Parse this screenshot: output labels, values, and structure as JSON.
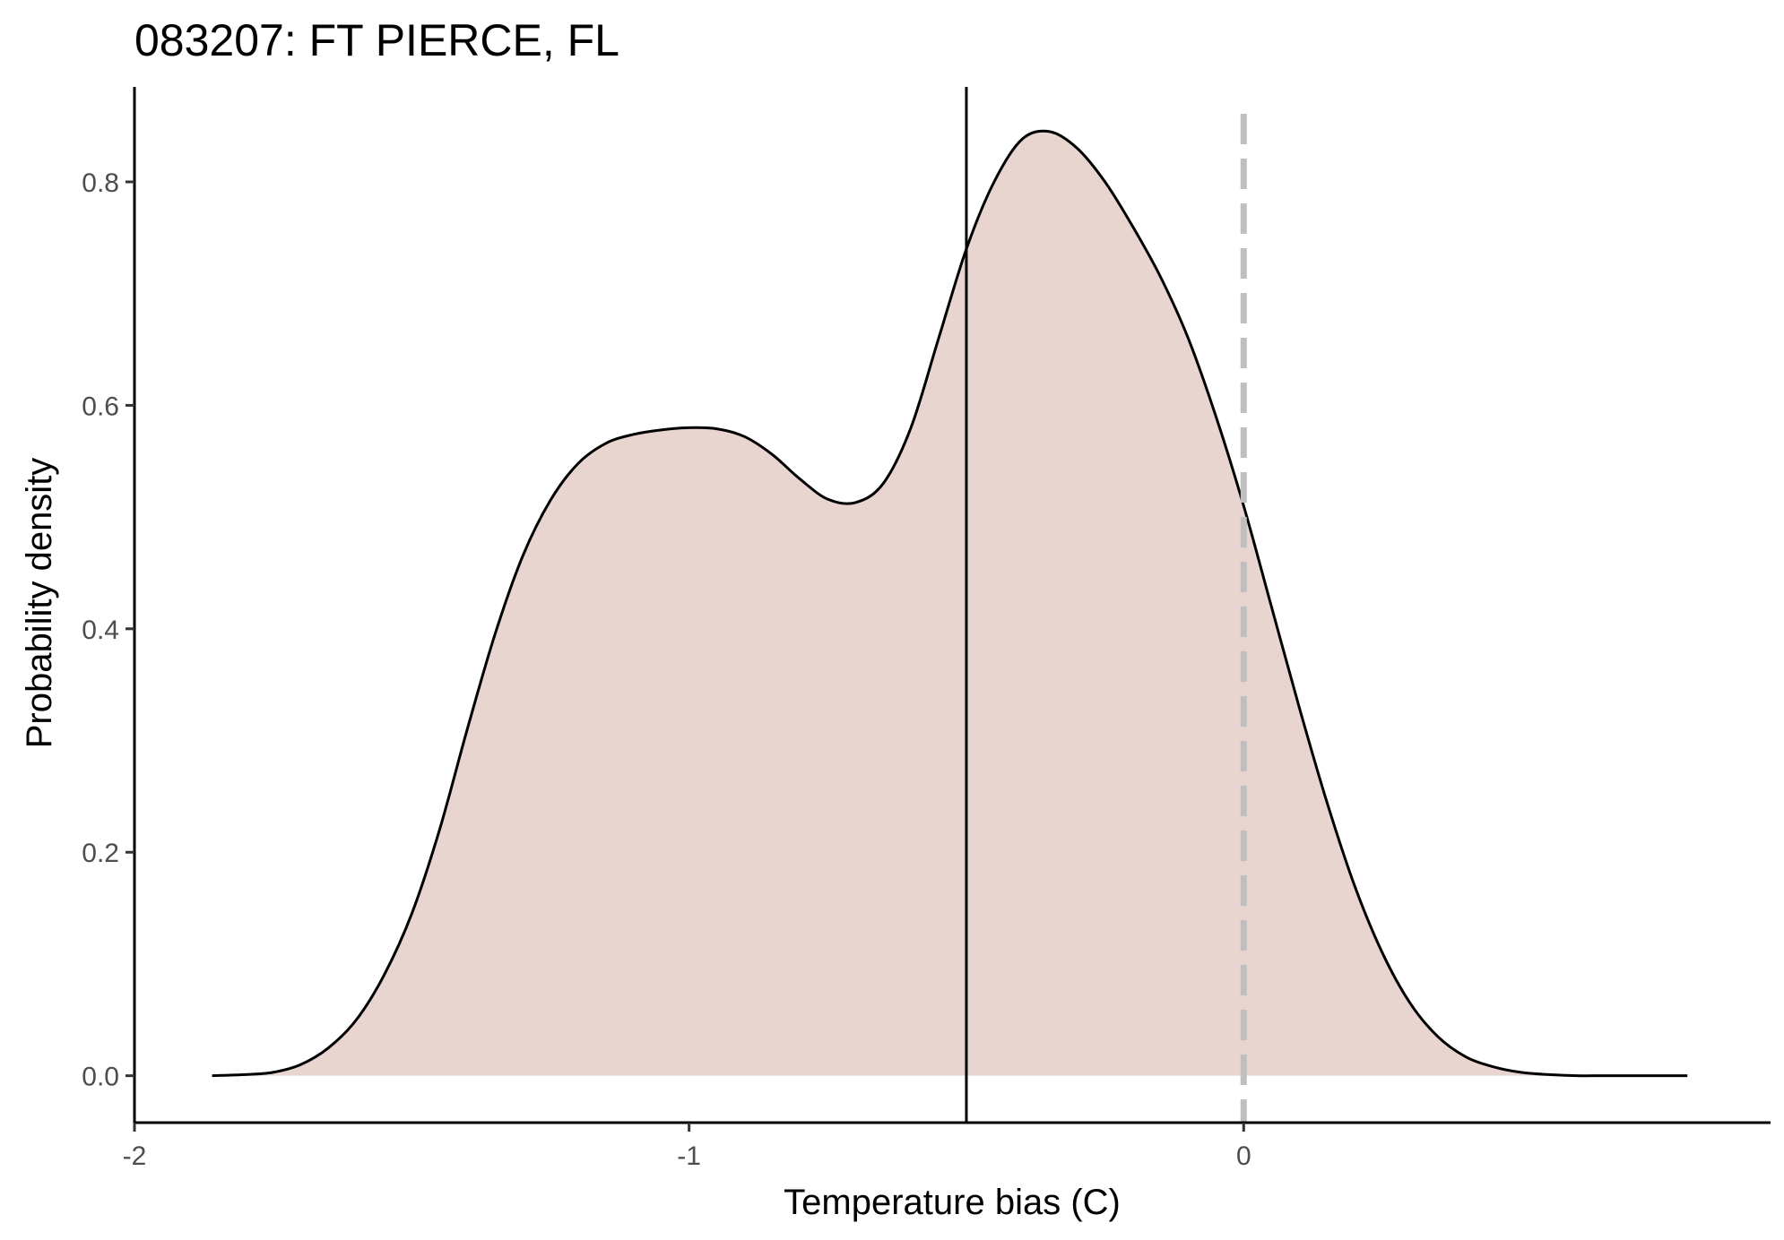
{
  "chart_data": {
    "type": "area",
    "title": "083207: FT PIERCE, FL",
    "xlabel": "Temperature bias (C)",
    "ylabel": "Probability density",
    "xlim": [
      -2.0,
      0.95
    ],
    "ylim": [
      -0.042,
      0.885
    ],
    "x_ticks": [
      -2,
      -1,
      0
    ],
    "x_tick_labels": [
      "-2",
      "-1",
      "0"
    ],
    "y_ticks": [
      0.0,
      0.2,
      0.4,
      0.6,
      0.8
    ],
    "y_tick_labels": [
      "0.0",
      "0.2",
      "0.4",
      "0.6",
      "0.8"
    ],
    "grid": false,
    "legend": "none",
    "fill_color": "#e8d5cf",
    "line_color": "#000000",
    "vline_solid_x": -0.5,
    "vline_dashed_x": 0.0,
    "vline_dashed_color": "#bfbfbf",
    "density": {
      "x": [
        -1.86,
        -1.8,
        -1.75,
        -1.7,
        -1.65,
        -1.6,
        -1.55,
        -1.5,
        -1.45,
        -1.4,
        -1.35,
        -1.3,
        -1.25,
        -1.2,
        -1.15,
        -1.1,
        -1.05,
        -1.0,
        -0.95,
        -0.9,
        -0.85,
        -0.8,
        -0.75,
        -0.7,
        -0.65,
        -0.6,
        -0.55,
        -0.5,
        -0.45,
        -0.4,
        -0.35,
        -0.3,
        -0.25,
        -0.2,
        -0.15,
        -0.1,
        -0.05,
        0.0,
        0.05,
        0.1,
        0.15,
        0.2,
        0.25,
        0.3,
        0.35,
        0.4,
        0.45,
        0.5,
        0.55,
        0.6,
        0.65,
        0.7,
        0.75,
        0.8
      ],
      "y": [
        0.0,
        0.001,
        0.003,
        0.01,
        0.025,
        0.05,
        0.09,
        0.145,
        0.22,
        0.31,
        0.395,
        0.465,
        0.515,
        0.548,
        0.566,
        0.574,
        0.578,
        0.58,
        0.579,
        0.572,
        0.556,
        0.534,
        0.516,
        0.513,
        0.53,
        0.58,
        0.66,
        0.74,
        0.8,
        0.838,
        0.845,
        0.83,
        0.8,
        0.76,
        0.715,
        0.66,
        0.59,
        0.51,
        0.42,
        0.33,
        0.245,
        0.17,
        0.11,
        0.065,
        0.035,
        0.017,
        0.008,
        0.003,
        0.001,
        0.0,
        0.0,
        0.0,
        0.0,
        0.0
      ]
    }
  }
}
